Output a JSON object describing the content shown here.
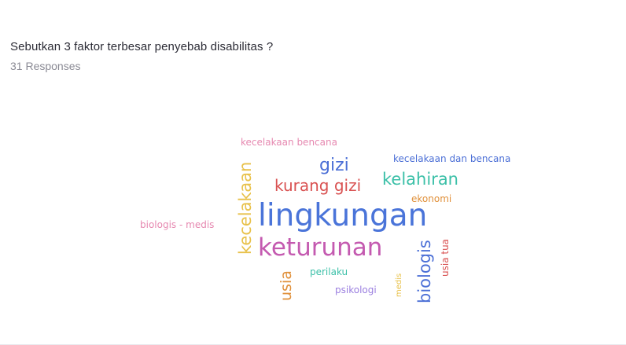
{
  "question": {
    "title": "Sebutkan 3 faktor terbesar penyebab disabilitas ?",
    "responses": "31 Responses"
  },
  "wordcloud": {
    "words": [
      {
        "text": "kecelakaan bencana",
        "color": "#e688b0"
      },
      {
        "text": "gizi",
        "color": "#4b6fd6"
      },
      {
        "text": "kecelakaan dan bencana",
        "color": "#4b6fd6"
      },
      {
        "text": "kurang gizi",
        "color": "#d95252"
      },
      {
        "text": "kelahiran",
        "color": "#3cc0a8"
      },
      {
        "text": "ekonomi",
        "color": "#e0903a"
      },
      {
        "text": "lingkungan",
        "color": "#4a74d9"
      },
      {
        "text": "biologis - medis",
        "color": "#e688b0"
      },
      {
        "text": "kecelakaan",
        "color": "#e8c14a"
      },
      {
        "text": "keturunan",
        "color": "#c45ab0"
      },
      {
        "text": "biologis",
        "color": "#4b6fd6"
      },
      {
        "text": "usia tua",
        "color": "#d95252"
      },
      {
        "text": "perilaku",
        "color": "#3cc0a8"
      },
      {
        "text": "usia",
        "color": "#e0903a"
      },
      {
        "text": "psikologi",
        "color": "#9b7fe0"
      },
      {
        "text": "medis",
        "color": "#e8c14a"
      }
    ]
  }
}
